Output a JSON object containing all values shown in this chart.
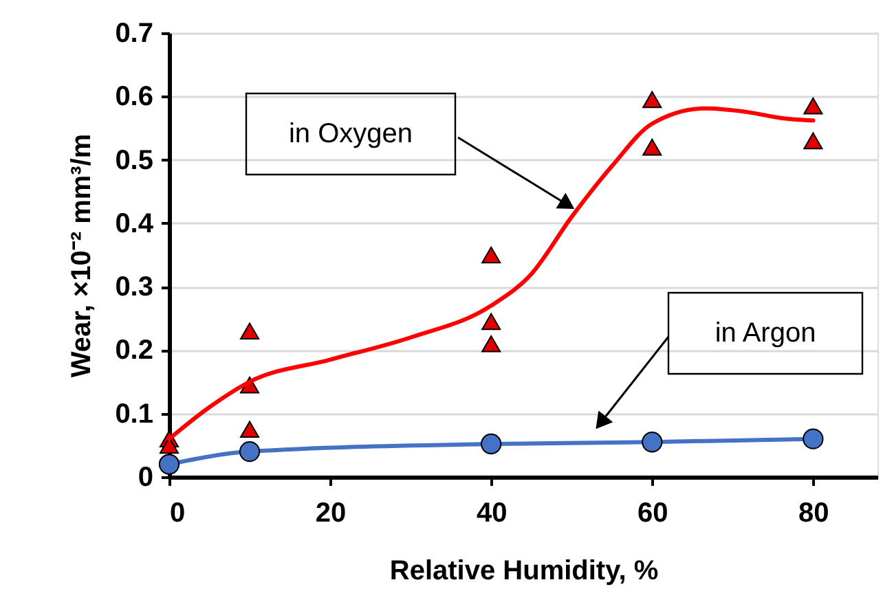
{
  "chart_data": {
    "type": "scatter",
    "xlabel": "Relative Humidity, %",
    "ylabel": "Wear, ×10⁻² mm³/m",
    "xlim": [
      0,
      88
    ],
    "xticks": [
      0,
      20,
      40,
      60,
      80
    ],
    "ylim": [
      0,
      0.7
    ],
    "yticks": [
      0,
      0.1,
      0.2,
      0.3,
      0.4,
      0.5,
      0.6,
      0.7
    ],
    "grid": "y",
    "annotations": [
      "in Oxygen",
      "in Argon"
    ],
    "series": [
      {
        "type": "scatter",
        "marker": "triangle",
        "color": "#e00000",
        "x": [
          0,
          0,
          10,
          10,
          10,
          40,
          40,
          40,
          60,
          60,
          80,
          80
        ],
        "values": [
          0.06,
          0.05,
          0.23,
          0.145,
          0.075,
          0.35,
          0.245,
          0.21,
          0.595,
          0.52,
          0.585,
          0.53
        ]
      },
      {
        "type": "line",
        "marker": "none",
        "line_style": "solid",
        "color": "#ff0000",
        "x": [
          0,
          5,
          10,
          20,
          30,
          40,
          45,
          50,
          55,
          60,
          66.5,
          72,
          76,
          80
        ],
        "values": [
          0.06,
          0.11,
          0.15,
          0.185,
          0.22,
          0.27,
          0.32,
          0.41,
          0.49,
          0.557,
          0.581,
          0.575,
          0.566,
          0.562
        ]
      },
      {
        "type": "line",
        "marker": "circle",
        "line_style": "solid",
        "color": "#4472c4",
        "x": [
          0,
          10,
          40,
          60,
          80
        ],
        "values": [
          0.02,
          0.04,
          0.052,
          0.055,
          0.06
        ]
      }
    ]
  }
}
